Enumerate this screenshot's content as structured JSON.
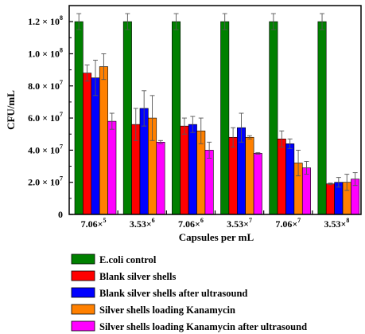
{
  "chart_data": {
    "type": "bar",
    "xlabel": "Capsules per mL",
    "ylabel": "CFU/mL",
    "ylim": [
      0,
      130000000
    ],
    "grid": false,
    "legend_placement": "bottom",
    "categories": [
      {
        "base": "7.06×",
        "exp": "5"
      },
      {
        "base": "3.53×",
        "exp": "6"
      },
      {
        "base": "7.06×",
        "exp": "6"
      },
      {
        "base": "3.53×",
        "exp": "7"
      },
      {
        "base": "7.06×",
        "exp": "7"
      },
      {
        "base": "3.53×",
        "exp": "8"
      }
    ],
    "y_ticks": [
      {
        "value": 0,
        "base": "0",
        "exp": ""
      },
      {
        "value": 20000000,
        "base": "2.0 × 10",
        "exp": "7"
      },
      {
        "value": 40000000,
        "base": "4.0 × 10",
        "exp": "7"
      },
      {
        "value": 60000000,
        "base": "6.0 × 10",
        "exp": "7"
      },
      {
        "value": 80000000,
        "base": "8.0 × 10",
        "exp": "7"
      },
      {
        "value": 100000000,
        "base": "1.0 × 10",
        "exp": "8"
      },
      {
        "value": 120000000,
        "base": "1.2 × 10",
        "exp": "8"
      }
    ],
    "series": [
      {
        "name": "E.coli control",
        "color": "#008000",
        "values": [
          120000000,
          120000000,
          120000000,
          120000000,
          120000000,
          120000000
        ],
        "errors": [
          5000000,
          5000000,
          5000000,
          5000000,
          5000000,
          5000000
        ]
      },
      {
        "name": "Blank silver shells",
        "color": "#ff0000",
        "values": [
          88000000,
          56000000,
          55000000,
          48000000,
          47000000,
          19000000
        ],
        "errors": [
          5000000,
          10000000,
          5000000,
          6000000,
          5000000,
          500000
        ]
      },
      {
        "name": "Blank silver shells after ultrasound",
        "color": "#0000ff",
        "values": [
          85000000,
          66000000,
          56000000,
          54000000,
          44000000,
          20000000
        ],
        "errors": [
          11000000,
          11000000,
          5000000,
          9000000,
          3000000,
          3000000
        ]
      },
      {
        "name": "Silver shells loading Kanamycin",
        "color": "#ff8000",
        "values": [
          92000000,
          60000000,
          52000000,
          48000000,
          32000000,
          20000000
        ],
        "errors": [
          8000000,
          14000000,
          8000000,
          1000000,
          8000000,
          5000000
        ]
      },
      {
        "name": "Silver shells loading Kanamycin after ultrasound",
        "color": "#ff00ff",
        "values": [
          58000000,
          45000000,
          40000000,
          38000000,
          29000000,
          22000000
        ],
        "errors": [
          5000000,
          1000000,
          5000000,
          500000,
          4000000,
          4000000
        ]
      }
    ]
  }
}
